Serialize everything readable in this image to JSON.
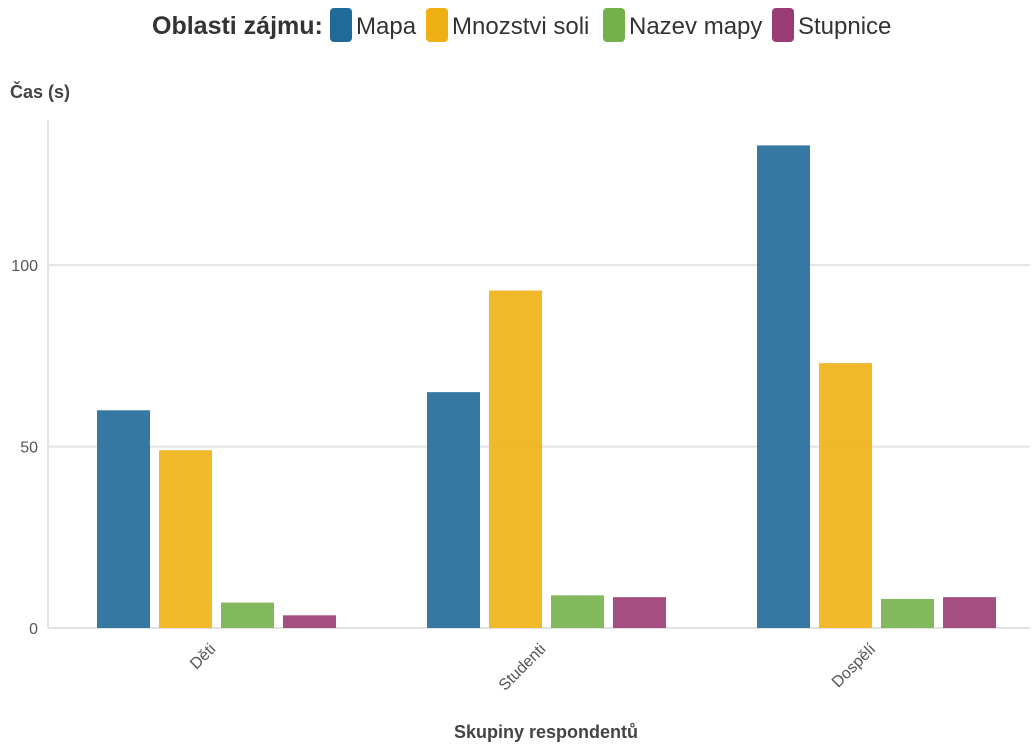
{
  "legend": {
    "title": "Oblasti zájmu:"
  },
  "colors": {
    "Mapa": "#1f6a99",
    "Mnozstvi soli": "#efb013",
    "Nazev mapy": "#74b14a",
    "Stupnice": "#9a3b73"
  },
  "chart_data": {
    "type": "bar",
    "categories": [
      "Děti",
      "Studenti",
      "Dospělí"
    ],
    "series": [
      {
        "name": "Mapa",
        "values": [
          60,
          65,
          133
        ]
      },
      {
        "name": "Mnozstvi soli",
        "values": [
          49,
          93,
          73
        ]
      },
      {
        "name": "Nazev mapy",
        "values": [
          7,
          9,
          8
        ]
      },
      {
        "name": "Stupnice",
        "values": [
          3.5,
          8.5,
          8.5
        ]
      }
    ],
    "xlabel": "Skupiny respondentů",
    "ylabel": "Čas (s)",
    "ylim": [
      0,
      140
    ],
    "yticks": [
      0,
      50,
      100
    ],
    "grid": true,
    "legend_position": "top"
  }
}
